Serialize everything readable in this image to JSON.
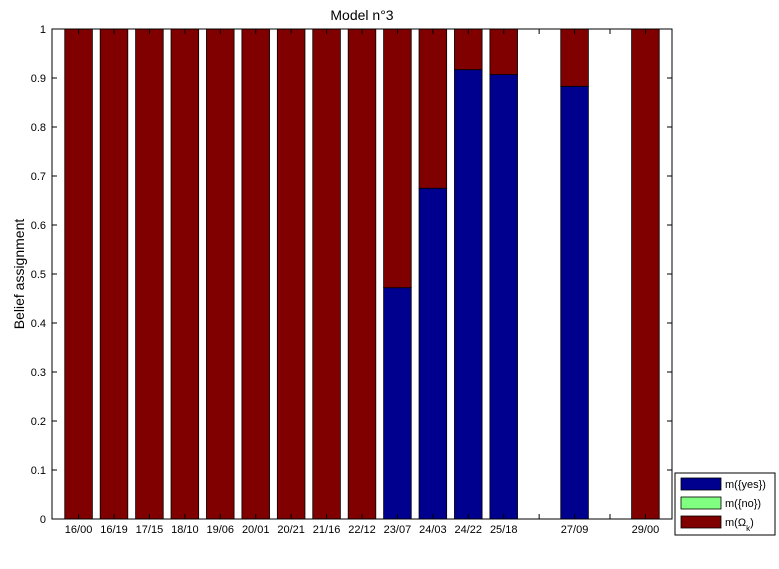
{
  "chart_data": {
    "type": "bar",
    "stacked": true,
    "title": "Model n°3",
    "xlabel": "",
    "ylabel": "Belief assignment",
    "ylim": [
      0,
      1
    ],
    "yticks": [
      "0",
      "0.1",
      "0.2",
      "0.3",
      "0.4",
      "0.5",
      "0.6",
      "0.7",
      "0.8",
      "0.9",
      "1"
    ],
    "categories": [
      "16/00",
      "16/19",
      "17/15",
      "18/10",
      "19/06",
      "20/01",
      "20/21",
      "21/16",
      "22/12",
      "23/07",
      "24/03",
      "24/22",
      "25/18",
      "",
      "27/09",
      "",
      "29/00"
    ],
    "series": [
      {
        "name": "m({yes})",
        "color": "#00008f",
        "values": [
          0,
          0,
          0,
          0,
          0,
          0,
          0,
          0,
          0,
          0.472,
          0.675,
          0.917,
          0.907,
          null,
          0.883,
          null,
          0
        ]
      },
      {
        "name": "m({no})",
        "color": "#80ff80",
        "values": [
          0,
          0,
          0,
          0,
          0,
          0,
          0,
          0,
          0,
          0,
          0,
          0,
          0,
          null,
          0,
          null,
          0
        ]
      },
      {
        "name": "m(Ω_k)",
        "color": "#800000",
        "values": [
          1,
          1,
          1,
          1,
          1,
          1,
          1,
          1,
          1,
          0.528,
          0.325,
          0.083,
          0.093,
          null,
          0.117,
          null,
          1
        ]
      }
    ],
    "legend": {
      "placement": "bottom-right",
      "entries": [
        {
          "label": "m({yes})",
          "color": "#00008f"
        },
        {
          "label": "m({no})",
          "color": "#80ff80"
        },
        {
          "label": "m(Ω",
          "sub": "k",
          "suffix": ")",
          "color": "#800000"
        }
      ]
    },
    "grid": false
  }
}
